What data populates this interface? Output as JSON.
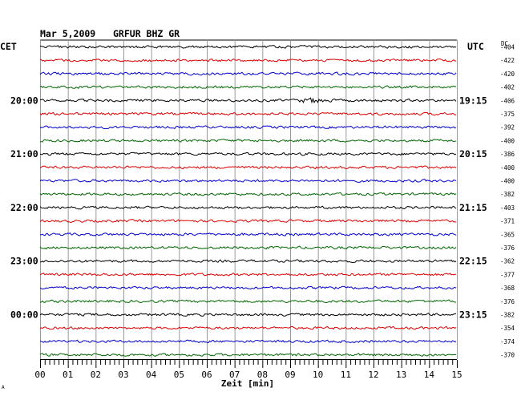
{
  "header": {
    "date": "Mar 5,2009",
    "station": "GRFUR BHZ GR",
    "left_timezone": "CET",
    "right_timezone": "UTC",
    "dc_header": "DC"
  },
  "chart_data": {
    "type": "line",
    "title": "Mar 5,2009   GRFUR BHZ GR",
    "xlabel": "Zeit [min]",
    "x_ticks": [
      "00",
      "01",
      "02",
      "03",
      "04",
      "05",
      "06",
      "07",
      "08",
      "09",
      "10",
      "11",
      "12",
      "13",
      "14",
      "15"
    ],
    "xlim": [
      0,
      15
    ],
    "grid": true,
    "trace_colors": [
      "#000000",
      "#dd0000",
      "#0000cc",
      "#006600"
    ],
    "left_hour_labels": [
      {
        "trace": 4,
        "label": "20:00"
      },
      {
        "trace": 8,
        "label": "21:00"
      },
      {
        "trace": 12,
        "label": "22:00"
      },
      {
        "trace": 16,
        "label": "23:00"
      },
      {
        "trace": 20,
        "label": "00:00"
      }
    ],
    "right_hour_labels": [
      {
        "trace": 4,
        "label": "19:15"
      },
      {
        "trace": 8,
        "label": "20:15"
      },
      {
        "trace": 12,
        "label": "21:15"
      },
      {
        "trace": 16,
        "label": "22:15"
      },
      {
        "trace": 20,
        "label": "23:15"
      }
    ],
    "dc_offsets": [
      "-404",
      "-422",
      "-420",
      "-402",
      "-406",
      "-375",
      "-392",
      "-400",
      "-386",
      "-400",
      "-400",
      "-382",
      "-403",
      "-371",
      "-365",
      "-376",
      "-362",
      "-377",
      "-368",
      "-376",
      "-382",
      "-354",
      "-374",
      "-370"
    ],
    "events": [
      {
        "trace": 4,
        "minute_start": 9.1,
        "minute_end": 10.6,
        "amplitude": "large"
      }
    ],
    "footer_mark": "A"
  }
}
